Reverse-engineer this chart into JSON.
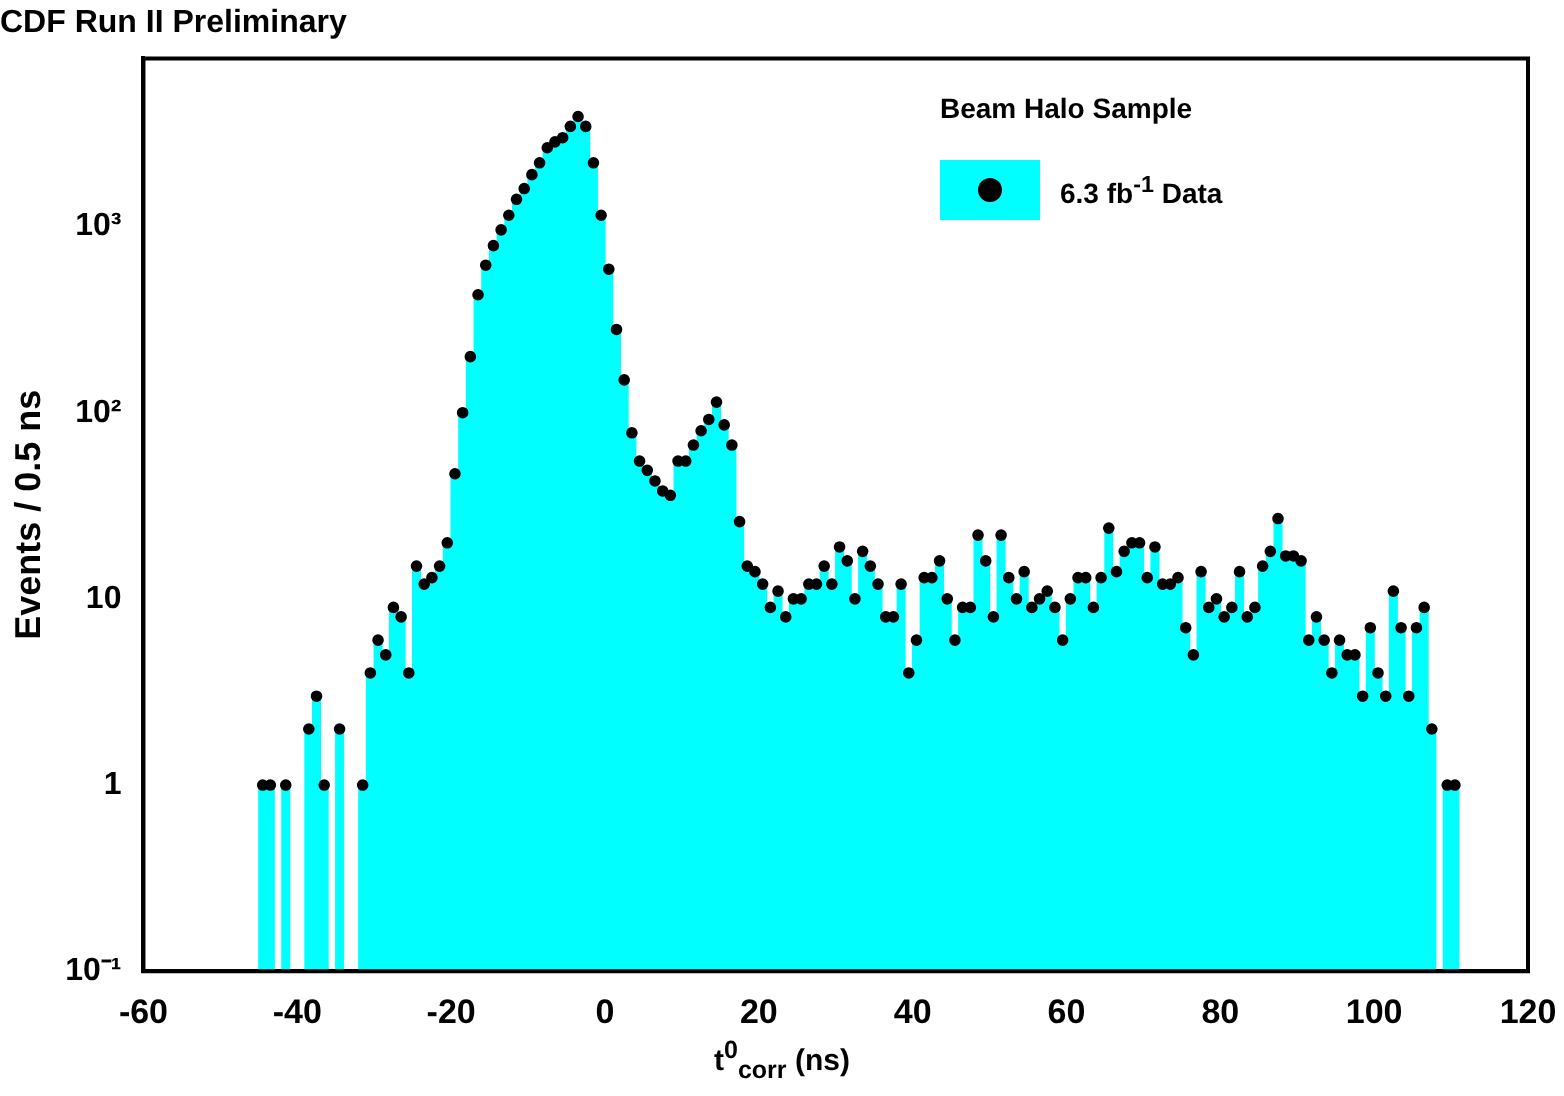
{
  "chart_data": {
    "type": "histogram",
    "title": "CDF Run II Preliminary",
    "xlabel": "t$^{0}$$_{corr}$ (ns)",
    "ylabel": "Events / 0.5 ns",
    "legend_title": "Beam Halo Sample",
    "bins": [
      -45,
      -44,
      -43,
      -42,
      -41,
      -40,
      -39,
      -38,
      -37,
      -36,
      -35,
      -34,
      -33,
      -32,
      -31,
      -30,
      -29,
      -28,
      -27,
      -26,
      -25,
      -24,
      -23,
      -22,
      -21,
      -20,
      -19,
      -18,
      -17,
      -16,
      -15,
      -14,
      -13,
      -12,
      -11,
      -10,
      -9,
      -8,
      -7,
      -6,
      -5,
      -4,
      -3,
      -2,
      -1,
      0,
      1,
      2,
      3,
      4,
      5,
      6,
      7,
      8,
      9,
      10,
      11,
      12,
      13,
      14,
      15,
      16,
      17,
      18,
      19,
      20,
      21,
      22,
      23,
      24,
      25,
      26,
      27,
      28,
      29,
      30,
      31,
      32,
      33,
      34,
      35,
      36,
      37,
      38,
      39,
      40,
      41,
      42,
      43,
      44,
      45,
      46,
      47,
      48,
      49,
      50,
      51,
      52,
      53,
      54,
      55,
      56,
      57,
      58,
      59,
      60,
      61,
      62,
      63,
      64,
      65,
      66,
      67,
      68,
      69,
      70,
      71,
      72,
      73,
      74,
      75,
      76,
      77,
      78,
      79,
      80,
      81,
      82,
      83,
      84,
      85,
      86,
      87,
      88,
      89,
      90,
      91,
      92,
      93,
      94,
      95,
      96,
      97,
      98,
      99,
      100,
      101,
      102,
      103,
      104,
      105,
      106,
      107,
      108,
      109,
      110,
      111
    ],
    "series": [
      {
        "color": "#00ffff",
        "values": [
          1,
          1,
          null,
          1,
          null,
          null,
          2,
          3,
          1,
          null,
          2,
          null,
          null,
          1,
          4,
          6,
          5,
          9,
          8,
          4,
          15,
          12,
          13,
          15,
          20,
          47,
          100,
          200,
          430,
          620,
          790,
          960,
          1150,
          1400,
          1600,
          1900,
          2200,
          2650,
          2850,
          3000,
          3450,
          3900,
          3450,
          2200,
          1150,
          590,
          280,
          150,
          78,
          55,
          49,
          43,
          38,
          36,
          55,
          55,
          67,
          80,
          92,
          114,
          86,
          67,
          26,
          15,
          14,
          12,
          9,
          11,
          8,
          10,
          10,
          12,
          12,
          15,
          12,
          19,
          16,
          10,
          18,
          15,
          12,
          8,
          8,
          12,
          4,
          6,
          13,
          13,
          16,
          10,
          6,
          9,
          9,
          22,
          16,
          8,
          22,
          13,
          10,
          14,
          9,
          10,
          11,
          9,
          6,
          10,
          13,
          13,
          9,
          13,
          24,
          14,
          18,
          20,
          20,
          13,
          19,
          12,
          12,
          13,
          7,
          5,
          14,
          9,
          10,
          8,
          9,
          14,
          8,
          9,
          15,
          18,
          27,
          17,
          17,
          16,
          6,
          8,
          6,
          4,
          6,
          5,
          5,
          3,
          7,
          4,
          3,
          11,
          7,
          3,
          7,
          9,
          2,
          null,
          1,
          1
        ]
      },
      {
        "name": "6.3 fb$^{-1}$ Data",
        "type": "scatter",
        "color": "#000000",
        "x": [
          -44.5,
          -43.5,
          -42.5,
          -41.5,
          -40.5,
          -39.5,
          -38.5,
          -37.5,
          -36.5,
          -35.5,
          -34.5,
          -33.5,
          -32.5,
          -31.5,
          -30.5,
          -29.5,
          -28.5,
          -27.5,
          -26.5,
          -25.5,
          -24.5,
          -23.5,
          -22.5,
          -21.5,
          -20.5,
          -19.5,
          -18.5,
          -17.5,
          -16.5,
          -15.5,
          -14.5,
          -13.5,
          -12.5,
          -11.5,
          -10.5,
          -9.5,
          -8.5,
          -7.5,
          -6.5,
          -5.5,
          -4.5,
          -3.5,
          -2.5,
          -1.5,
          -0.5,
          0.5,
          1.5,
          2.5,
          3.5,
          4.5,
          5.5,
          6.5,
          7.5,
          8.5,
          9.5,
          10.5,
          11.5,
          12.5,
          13.5,
          14.5,
          15.5,
          16.5,
          17.5,
          18.5,
          19.5,
          20.5,
          21.5,
          22.5,
          23.5,
          24.5,
          25.5,
          26.5,
          27.5,
          28.5,
          29.5,
          30.5,
          31.5,
          32.5,
          33.5,
          34.5,
          35.5,
          36.5,
          37.5,
          38.5,
          39.5,
          40.5,
          41.5,
          42.5,
          43.5,
          44.5,
          45.5,
          46.5,
          47.5,
          48.5,
          49.5,
          50.5,
          51.5,
          52.5,
          53.5,
          54.5,
          55.5,
          56.5,
          57.5,
          58.5,
          59.5,
          60.5,
          61.5,
          62.5,
          63.5,
          64.5,
          65.5,
          66.5,
          67.5,
          68.5,
          69.5,
          70.5,
          71.5,
          72.5,
          73.5,
          74.5,
          75.5,
          76.5,
          77.5,
          78.5,
          79.5,
          80.5,
          81.5,
          82.5,
          83.5,
          84.5,
          85.5,
          86.5,
          87.5,
          88.5,
          89.5,
          90.5,
          91.5,
          92.5,
          93.5,
          94.5,
          95.5,
          96.5,
          97.5,
          98.5,
          99.5,
          100.5,
          101.5,
          102.5,
          103.5,
          104.5,
          105.5,
          106.5,
          107.5,
          108.5,
          109.5,
          110.5
        ],
        "values": [
          1,
          1,
          null,
          1,
          null,
          null,
          2,
          3,
          1,
          null,
          2,
          null,
          null,
          1,
          4,
          6,
          5,
          9,
          8,
          4,
          15,
          12,
          13,
          15,
          20,
          47,
          100,
          200,
          430,
          620,
          790,
          960,
          1150,
          1400,
          1600,
          1900,
          2200,
          2650,
          2850,
          3000,
          3450,
          3900,
          3450,
          2200,
          1150,
          590,
          280,
          150,
          78,
          55,
          49,
          43,
          38,
          36,
          55,
          55,
          67,
          80,
          92,
          114,
          86,
          67,
          26,
          15,
          14,
          12,
          9,
          11,
          8,
          10,
          10,
          12,
          12,
          15,
          12,
          19,
          16,
          10,
          18,
          15,
          12,
          8,
          8,
          12,
          4,
          6,
          13,
          13,
          16,
          10,
          6,
          9,
          9,
          22,
          16,
          8,
          22,
          13,
          10,
          14,
          9,
          10,
          11,
          9,
          6,
          10,
          13,
          13,
          9,
          13,
          24,
          14,
          18,
          20,
          20,
          13,
          19,
          12,
          12,
          13,
          7,
          5,
          14,
          9,
          10,
          8,
          9,
          14,
          8,
          9,
          15,
          18,
          27,
          17,
          17,
          16,
          6,
          8,
          6,
          4,
          6,
          5,
          5,
          3,
          7,
          4,
          3,
          11,
          7,
          3,
          7,
          9,
          2,
          null,
          1,
          1
        ]
      }
    ],
    "xlim": [
      -60,
      120
    ],
    "xticks": [
      -60,
      -40,
      -20,
      0,
      20,
      40,
      60,
      80,
      100,
      120
    ],
    "ylim": [
      0.1,
      8000
    ],
    "yticks": [
      {
        "value": 0.1,
        "label": "10⁻¹"
      },
      1,
      10,
      {
        "value": 100,
        "label": "10²"
      },
      {
        "value": 1000,
        "label": "10³"
      }
    ],
    "log": "y",
    "grid": false,
    "legend": "top right",
    "marker": "circle"
  }
}
